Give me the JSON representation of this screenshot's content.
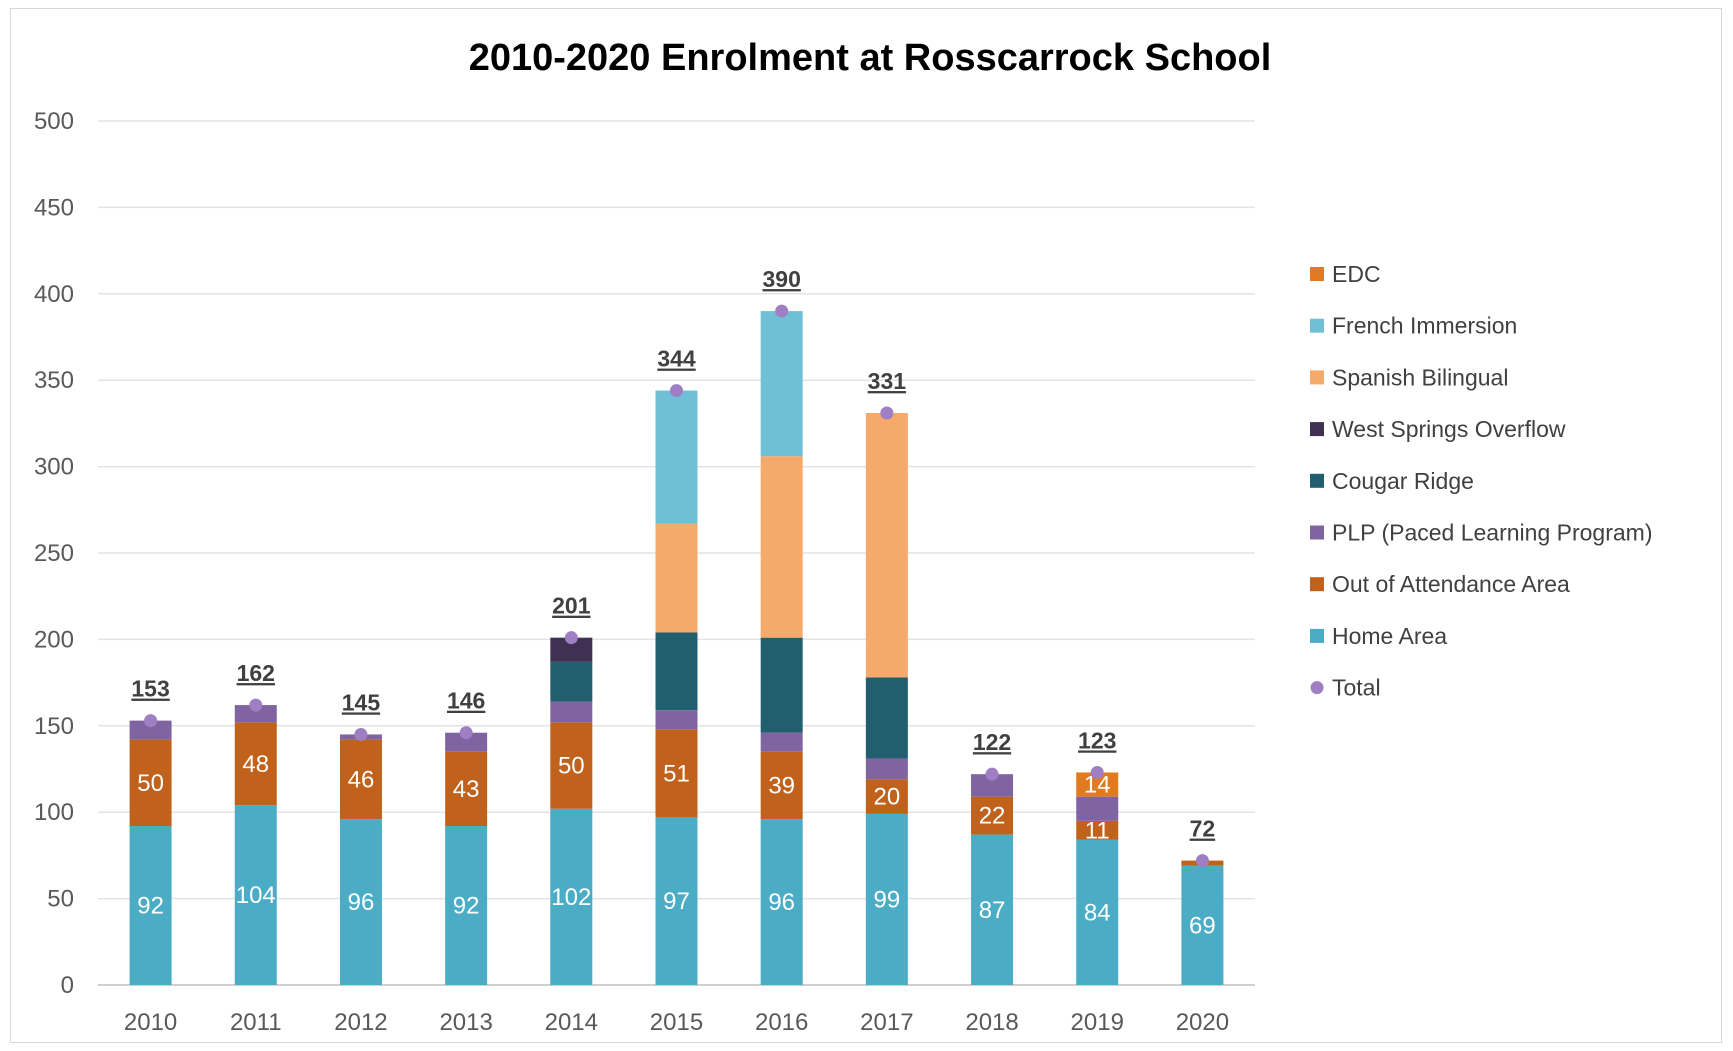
{
  "chart_data": {
    "type": "bar",
    "stacked": true,
    "title": "2010-2020 Enrolment at Rosscarrock School",
    "categories": [
      "2010",
      "2011",
      "2012",
      "2013",
      "2014",
      "2015",
      "2016",
      "2017",
      "2018",
      "2019",
      "2020"
    ],
    "ylim": [
      0,
      500
    ],
    "yticks": [
      0,
      50,
      100,
      150,
      200,
      250,
      300,
      350,
      400,
      450,
      500
    ],
    "grid": true,
    "legend_position": "right",
    "series": [
      {
        "name": "Home Area",
        "color": "#4bacc6",
        "values": [
          92,
          104,
          96,
          92,
          102,
          97,
          96,
          99,
          87,
          84,
          69
        ],
        "labels": [
          "92",
          "104",
          "96",
          "92",
          "102",
          "97",
          "96",
          "99",
          "87",
          "84",
          "69"
        ]
      },
      {
        "name": "Out of Attendance Area",
        "color": "#c0621b",
        "values": [
          50,
          48,
          46,
          43,
          50,
          51,
          39,
          20,
          22,
          11,
          3
        ],
        "labels": [
          "50",
          "48",
          "46",
          "43",
          "50",
          "51",
          "39",
          "20",
          "22",
          "11",
          "3"
        ]
      },
      {
        "name": "PLP (Paced Learning Program)",
        "color": "#8064a2",
        "values": [
          11,
          10,
          3,
          11,
          12,
          11,
          11,
          12,
          13,
          14,
          0
        ],
        "labels": [
          "",
          "",
          "",
          "",
          "",
          "",
          "",
          "",
          "",
          "",
          ""
        ]
      },
      {
        "name": "Cougar Ridge",
        "color": "#215f6e",
        "values": [
          0,
          0,
          0,
          0,
          23,
          45,
          55,
          47,
          0,
          0,
          0
        ],
        "labels": [
          "",
          "",
          "",
          "",
          "",
          "",
          "",
          "",
          "",
          "",
          ""
        ]
      },
      {
        "name": "West Springs Overflow",
        "color": "#403152",
        "values": [
          0,
          0,
          0,
          0,
          14,
          0,
          0,
          0,
          0,
          0,
          0
        ],
        "labels": [
          "",
          "",
          "",
          "",
          "",
          "",
          "",
          "",
          "",
          "",
          ""
        ]
      },
      {
        "name": "Spanish Bilingual",
        "color": "#f5a96a",
        "values": [
          0,
          0,
          0,
          0,
          0,
          63,
          105,
          153,
          0,
          0,
          0
        ],
        "labels": [
          "",
          "",
          "",
          "",
          "",
          "",
          "",
          "",
          "",
          "",
          ""
        ]
      },
      {
        "name": "French Immersion",
        "color": "#6fc0d6",
        "values": [
          0,
          0,
          0,
          0,
          0,
          77,
          84,
          0,
          0,
          0,
          0
        ],
        "labels": [
          "",
          "",
          "",
          "",
          "",
          "",
          "",
          "",
          "",
          "",
          ""
        ]
      },
      {
        "name": "EDC",
        "color": "#e07b22",
        "values": [
          0,
          0,
          0,
          0,
          0,
          0,
          0,
          0,
          0,
          14,
          0
        ],
        "labels": [
          "",
          "",
          "",
          "",
          "",
          "",
          "",
          "",
          "",
          "14",
          ""
        ]
      }
    ],
    "total": {
      "name": "Total",
      "color": "#9e7fc4",
      "values": [
        153,
        162,
        145,
        146,
        201,
        344,
        390,
        331,
        122,
        123,
        72
      ]
    },
    "legend_order": [
      "EDC",
      "French Immersion",
      "Spanish Bilingual",
      "West Springs Overflow",
      "Cougar Ridge",
      "PLP (Paced Learning Program)",
      "Out of Attendance Area",
      "Home Area",
      "Total"
    ]
  }
}
